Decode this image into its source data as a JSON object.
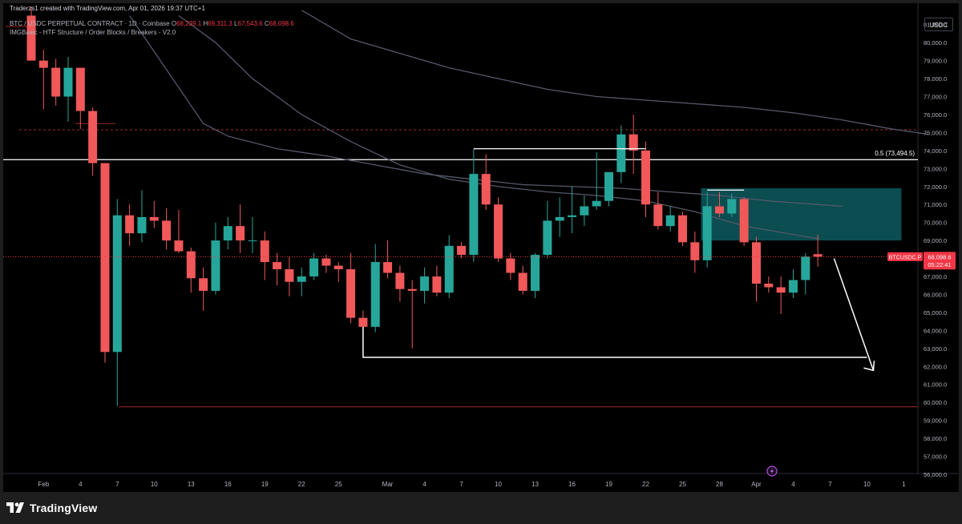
{
  "header": {
    "attribution": "Traderzs1 created with TradingView.com, Apr 01, 2026 19:37 UTC+1",
    "symbol": "BTC / USDC PERPETUAL CONTRACT · 1D · Coinbase",
    "ohlc": [
      {
        "k": "O",
        "v": "68,239.1"
      },
      {
        "k": "H",
        "v": "69,311.3"
      },
      {
        "k": "L",
        "v": "67,543.6"
      },
      {
        "k": "C",
        "v": "68,098.6"
      }
    ],
    "indicator": "IMGBasic - HTF Structure / Order Blocks / Breakers - V2.0"
  },
  "currency": "USDC",
  "footer": {
    "brand": "TradingView",
    "logo_icon": "tradingview-logo-icon"
  },
  "colors": {
    "bull": "#26a69a",
    "bear": "#f0585a",
    "background": "#000000",
    "price_line": "#f23645",
    "order_block": "#0d5a5f",
    "level_line": "#ffffff",
    "ma_line": "#55586a",
    "support_line": "#a02a2a"
  },
  "chart_data": {
    "type": "candlestick",
    "timeframe": "1D",
    "y_axis": {
      "min": 55500,
      "max": 82000,
      "ticks": [
        "81,000.0",
        "80,000.0",
        "79,000.0",
        "78,000.0",
        "77,000.0",
        "76,000.0",
        "75,000.0",
        "74,000.0",
        "73,000.0",
        "72,000.0",
        "71,000.0",
        "70,000.0",
        "69,000.0",
        "68,000.0",
        "67,000.0",
        "66,000.0",
        "65,000.0",
        "64,000.0",
        "63,000.0",
        "62,000.0",
        "61,000.0",
        "60,000.0",
        "59,000.0",
        "58,000.0",
        "57,000.0",
        "56,000.0"
      ]
    },
    "x_axis": {
      "start_date": "2026-01-31",
      "ticks": [
        {
          "label": "Feb",
          "day": 1
        },
        {
          "label": "4",
          "day": 4
        },
        {
          "label": "7",
          "day": 7
        },
        {
          "label": "10",
          "day": 10
        },
        {
          "label": "13",
          "day": 13
        },
        {
          "label": "16",
          "day": 16
        },
        {
          "label": "19",
          "day": 19
        },
        {
          "label": "22",
          "day": 22
        },
        {
          "label": "25",
          "day": 25
        },
        {
          "label": "Mar",
          "day": 29
        },
        {
          "label": "4",
          "day": 32
        },
        {
          "label": "7",
          "day": 35
        },
        {
          "label": "10",
          "day": 38
        },
        {
          "label": "13",
          "day": 41
        },
        {
          "label": "16",
          "day": 44
        },
        {
          "label": "19",
          "day": 47
        },
        {
          "label": "22",
          "day": 50
        },
        {
          "label": "25",
          "day": 53
        },
        {
          "label": "28",
          "day": 56
        },
        {
          "label": "Apr",
          "day": 59
        },
        {
          "label": "4",
          "day": 62
        },
        {
          "label": "7",
          "day": 65
        },
        {
          "label": "10",
          "day": 68
        },
        {
          "label": "1",
          "day": 71
        }
      ]
    },
    "candles": [
      {
        "day": 0,
        "o": 81500,
        "h": 82000,
        "l": 79000,
        "c": 79000
      },
      {
        "day": 1,
        "o": 79000,
        "h": 79600,
        "l": 76300,
        "c": 78600
      },
      {
        "day": 2,
        "o": 78600,
        "h": 79100,
        "l": 76500,
        "c": 77000
      },
      {
        "day": 3,
        "o": 77000,
        "h": 79200,
        "l": 75600,
        "c": 78600
      },
      {
        "day": 4,
        "o": 78600,
        "h": 78600,
        "l": 75200,
        "c": 76200
      },
      {
        "day": 5,
        "o": 76200,
        "h": 76400,
        "l": 72600,
        "c": 73300
      },
      {
        "day": 6,
        "o": 73300,
        "h": 73300,
        "l": 62200,
        "c": 62800
      },
      {
        "day": 7,
        "o": 62800,
        "h": 71300,
        "l": 59800,
        "c": 70400
      },
      {
        "day": 8,
        "o": 70400,
        "h": 71000,
        "l": 68700,
        "c": 69400
      },
      {
        "day": 9,
        "o": 69400,
        "h": 71800,
        "l": 68900,
        "c": 70300
      },
      {
        "day": 10,
        "o": 70300,
        "h": 71200,
        "l": 69700,
        "c": 70100
      },
      {
        "day": 11,
        "o": 70100,
        "h": 70800,
        "l": 68500,
        "c": 69000
      },
      {
        "day": 12,
        "o": 69000,
        "h": 70700,
        "l": 68300,
        "c": 68400
      },
      {
        "day": 13,
        "o": 68400,
        "h": 68600,
        "l": 66100,
        "c": 66900
      },
      {
        "day": 14,
        "o": 66900,
        "h": 67500,
        "l": 65100,
        "c": 66200
      },
      {
        "day": 15,
        "o": 66200,
        "h": 70000,
        "l": 66000,
        "c": 69000
      },
      {
        "day": 16,
        "o": 69000,
        "h": 70300,
        "l": 68500,
        "c": 69800
      },
      {
        "day": 17,
        "o": 69800,
        "h": 71000,
        "l": 68300,
        "c": 69000
      },
      {
        "day": 18,
        "o": 69000,
        "h": 70300,
        "l": 68300,
        "c": 69000
      },
      {
        "day": 19,
        "o": 69000,
        "h": 69500,
        "l": 66800,
        "c": 67800
      },
      {
        "day": 20,
        "o": 67800,
        "h": 68300,
        "l": 66500,
        "c": 67400
      },
      {
        "day": 21,
        "o": 67400,
        "h": 68100,
        "l": 65900,
        "c": 66700
      },
      {
        "day": 22,
        "o": 66700,
        "h": 67500,
        "l": 65900,
        "c": 67000
      },
      {
        "day": 23,
        "o": 67000,
        "h": 68300,
        "l": 66800,
        "c": 68000
      },
      {
        "day": 24,
        "o": 68000,
        "h": 68200,
        "l": 67200,
        "c": 67600
      },
      {
        "day": 25,
        "o": 67600,
        "h": 67800,
        "l": 66700,
        "c": 67400
      },
      {
        "day": 26,
        "o": 67400,
        "h": 68300,
        "l": 64400,
        "c": 64700
      },
      {
        "day": 27,
        "o": 64700,
        "h": 65100,
        "l": 62600,
        "c": 64200
      },
      {
        "day": 28,
        "o": 64200,
        "h": 68800,
        "l": 63900,
        "c": 67800
      },
      {
        "day": 29,
        "o": 67800,
        "h": 69000,
        "l": 66900,
        "c": 67200
      },
      {
        "day": 30,
        "o": 67200,
        "h": 67600,
        "l": 65600,
        "c": 66300
      },
      {
        "day": 31,
        "o": 66300,
        "h": 66800,
        "l": 63000,
        "c": 66200
      },
      {
        "day": 32,
        "o": 66200,
        "h": 67500,
        "l": 65500,
        "c": 67000
      },
      {
        "day": 33,
        "o": 67000,
        "h": 67600,
        "l": 65900,
        "c": 66100
      },
      {
        "day": 34,
        "o": 66100,
        "h": 69300,
        "l": 65800,
        "c": 68700
      },
      {
        "day": 35,
        "o": 68700,
        "h": 68900,
        "l": 68000,
        "c": 68200
      },
      {
        "day": 36,
        "o": 68200,
        "h": 74100,
        "l": 67800,
        "c": 72700
      },
      {
        "day": 37,
        "o": 72700,
        "h": 73800,
        "l": 70700,
        "c": 71000
      },
      {
        "day": 38,
        "o": 71000,
        "h": 71400,
        "l": 67800,
        "c": 68000
      },
      {
        "day": 39,
        "o": 68000,
        "h": 68300,
        "l": 66800,
        "c": 67200
      },
      {
        "day": 40,
        "o": 67200,
        "h": 67600,
        "l": 66000,
        "c": 66200
      },
      {
        "day": 41,
        "o": 66200,
        "h": 68300,
        "l": 65800,
        "c": 68200
      },
      {
        "day": 42,
        "o": 68200,
        "h": 71200,
        "l": 68000,
        "c": 70100
      },
      {
        "day": 43,
        "o": 70100,
        "h": 71400,
        "l": 69200,
        "c": 70300
      },
      {
        "day": 44,
        "o": 70300,
        "h": 72000,
        "l": 69400,
        "c": 70400
      },
      {
        "day": 45,
        "o": 70400,
        "h": 71500,
        "l": 69800,
        "c": 70900
      },
      {
        "day": 46,
        "o": 70900,
        "h": 73900,
        "l": 70700,
        "c": 71200
      },
      {
        "day": 47,
        "o": 71200,
        "h": 72800,
        "l": 70900,
        "c": 72800
      },
      {
        "day": 48,
        "o": 72800,
        "h": 75400,
        "l": 72200,
        "c": 74900
      },
      {
        "day": 49,
        "o": 74900,
        "h": 76000,
        "l": 72700,
        "c": 74000
      },
      {
        "day": 50,
        "o": 74000,
        "h": 74500,
        "l": 70300,
        "c": 71000
      },
      {
        "day": 51,
        "o": 71000,
        "h": 71700,
        "l": 69600,
        "c": 69800
      },
      {
        "day": 52,
        "o": 69800,
        "h": 70900,
        "l": 69500,
        "c": 70400
      },
      {
        "day": 53,
        "o": 70400,
        "h": 70600,
        "l": 68700,
        "c": 68900
      },
      {
        "day": 54,
        "o": 68900,
        "h": 69500,
        "l": 67200,
        "c": 67900
      },
      {
        "day": 55,
        "o": 67900,
        "h": 71700,
        "l": 67500,
        "c": 70900
      },
      {
        "day": 56,
        "o": 70900,
        "h": 71700,
        "l": 70300,
        "c": 70500
      },
      {
        "day": 57,
        "o": 70500,
        "h": 71600,
        "l": 70300,
        "c": 71300
      },
      {
        "day": 58,
        "o": 71300,
        "h": 71400,
        "l": 68700,
        "c": 68900
      },
      {
        "day": 59,
        "o": 68900,
        "h": 69200,
        "l": 65600,
        "c": 66600
      },
      {
        "day": 60,
        "o": 66600,
        "h": 67000,
        "l": 66100,
        "c": 66400
      },
      {
        "day": 61,
        "o": 66400,
        "h": 67000,
        "l": 64900,
        "c": 66100
      },
      {
        "day": 62,
        "o": 66100,
        "h": 67400,
        "l": 65800,
        "c": 66800
      },
      {
        "day": 63,
        "o": 66800,
        "h": 68300,
        "l": 66000,
        "c": 68100
      },
      {
        "day": 64,
        "o": 68239.1,
        "h": 69311.3,
        "l": 67543.6,
        "c": 68098.6
      }
    ],
    "moving_averages": [
      {
        "points": [
          [
            12,
            81500
          ],
          [
            15,
            80000
          ],
          [
            18,
            78000
          ],
          [
            22,
            76000
          ],
          [
            26,
            74500
          ],
          [
            30,
            73200
          ],
          [
            34,
            72400
          ],
          [
            38,
            72000
          ],
          [
            42,
            71700
          ],
          [
            46,
            71500
          ],
          [
            50,
            71200
          ],
          [
            54,
            70600
          ],
          [
            58,
            69800
          ],
          [
            64,
            69100
          ]
        ]
      },
      {
        "points": [
          [
            22,
            81800
          ],
          [
            26,
            80200
          ],
          [
            30,
            79400
          ],
          [
            34,
            78600
          ],
          [
            38,
            78000
          ],
          [
            42,
            77400
          ],
          [
            46,
            77000
          ],
          [
            50,
            76800
          ],
          [
            54,
            76600
          ],
          [
            58,
            76400
          ],
          [
            62,
            76100
          ],
          [
            66,
            75700
          ],
          [
            70,
            75200
          ],
          [
            73,
            74900
          ]
        ]
      },
      {
        "points": [
          [
            8,
            81500
          ],
          [
            10,
            79500
          ],
          [
            12,
            77500
          ],
          [
            14,
            75500
          ],
          [
            16,
            74800
          ],
          [
            20,
            74100
          ],
          [
            24,
            73700
          ],
          [
            28,
            73200
          ],
          [
            32,
            72700
          ],
          [
            36,
            72400
          ],
          [
            40,
            72100
          ],
          [
            44,
            72000
          ],
          [
            48,
            71900
          ],
          [
            52,
            71700
          ],
          [
            56,
            71500
          ],
          [
            60,
            71200
          ],
          [
            66,
            70900
          ]
        ]
      }
    ],
    "levels": [
      {
        "price": 73494.5,
        "label": "0.5 (73,494.5)",
        "color": "#ffffff",
        "style": "solid"
      },
      {
        "price": 75150,
        "color": "#a02a2a",
        "style": "dashed"
      },
      {
        "price": 59750,
        "color": "#a02a2a",
        "style": "solid"
      }
    ],
    "structure_lines": [
      {
        "from_day": 36,
        "to_day": 50,
        "price": 74100
      },
      {
        "from_day": 55,
        "to_day": 58,
        "price": 71800
      },
      {
        "from_day": 48,
        "to_day": 49,
        "price": 74100
      }
    ],
    "order_block": {
      "from_day": 54.5,
      "to_day": 71,
      "top": 71900,
      "bottom": 69000
    },
    "low_bracket": {
      "from_day": 27,
      "to_day": 68,
      "price": 62500,
      "vertical_from": 64200
    },
    "projection_arrow": {
      "from": [
        65,
        68000
      ],
      "to": [
        68,
        62000
      ]
    },
    "current_price": {
      "label": "BTCUSDC.P",
      "value": "68,098.6",
      "countdown": "05:22:41",
      "price": 68098.6
    }
  }
}
